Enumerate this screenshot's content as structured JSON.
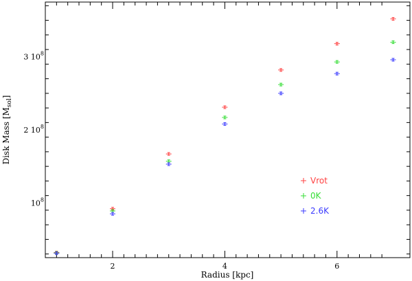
{
  "chart_data": {
    "type": "scatter",
    "xlabel": "Radius [kpc]",
    "ylabel": "Disk Mass [M",
    "ylabel_sub": "sol",
    "ylabel_close": "]",
    "xlim": [
      0.8,
      7.3
    ],
    "ylim": [
      25000000,
      375000000
    ],
    "x_ticks": [
      2,
      4,
      6
    ],
    "x_tick_labels": [
      "2",
      "4",
      "6"
    ],
    "y_ticks": [
      100000000,
      200000000,
      300000000
    ],
    "y_tick_labels": [
      {
        "mantissa": "10",
        "exponent": "8"
      },
      {
        "mantissa": "2 10",
        "exponent": "8"
      },
      {
        "mantissa": "3 10",
        "exponent": "8"
      }
    ],
    "grid": false,
    "legend_position": "lower-right",
    "series": [
      {
        "name": "Vrot",
        "color": "#ff4040",
        "x": [
          1,
          2,
          3,
          4,
          5,
          6,
          7
        ],
        "y": [
          32000000,
          92000000,
          167000000,
          231000000,
          282000000,
          318000000,
          352000000
        ]
      },
      {
        "name": "0K",
        "color": "#33dd33",
        "x": [
          1,
          2,
          3,
          4,
          5,
          6,
          7
        ],
        "y": [
          31500000,
          89000000,
          157000000,
          217000000,
          262000000,
          293000000,
          320000000
        ]
      },
      {
        "name": "2.6K",
        "color": "#3a3aff",
        "x": [
          1,
          2,
          3,
          4,
          5,
          6,
          7
        ],
        "y": [
          31000000,
          85000000,
          153000000,
          208000000,
          250000000,
          277000000,
          296000000
        ]
      }
    ]
  }
}
